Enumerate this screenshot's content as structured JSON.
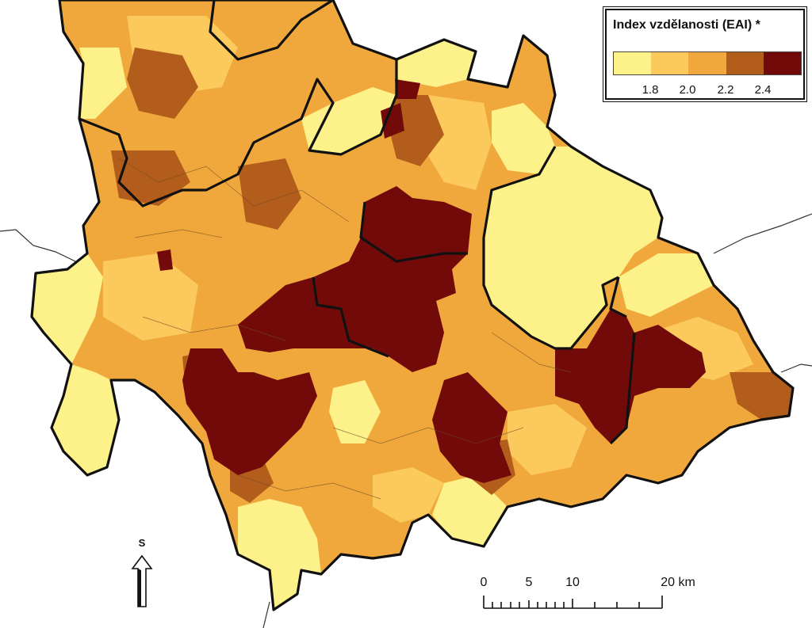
{
  "legend": {
    "title": "Index vzdělanosti (EAI) *",
    "classes": [
      {
        "color": "#fdf18a"
      },
      {
        "color": "#fbc95c"
      },
      {
        "color": "#f0a83c"
      },
      {
        "color": "#b35d1c"
      },
      {
        "color": "#730a0a"
      }
    ],
    "ticks": [
      "1.8",
      "2.0",
      "2.2",
      "2.4"
    ]
  },
  "scale_bar": {
    "labels": [
      "0",
      "5",
      "10",
      "20 km"
    ]
  },
  "north_arrow": {
    "letter": "S",
    "icon": "north-arrow-icon"
  },
  "colors": {
    "outside": "#ffffff",
    "border": "#111111",
    "river": "#333333"
  }
}
